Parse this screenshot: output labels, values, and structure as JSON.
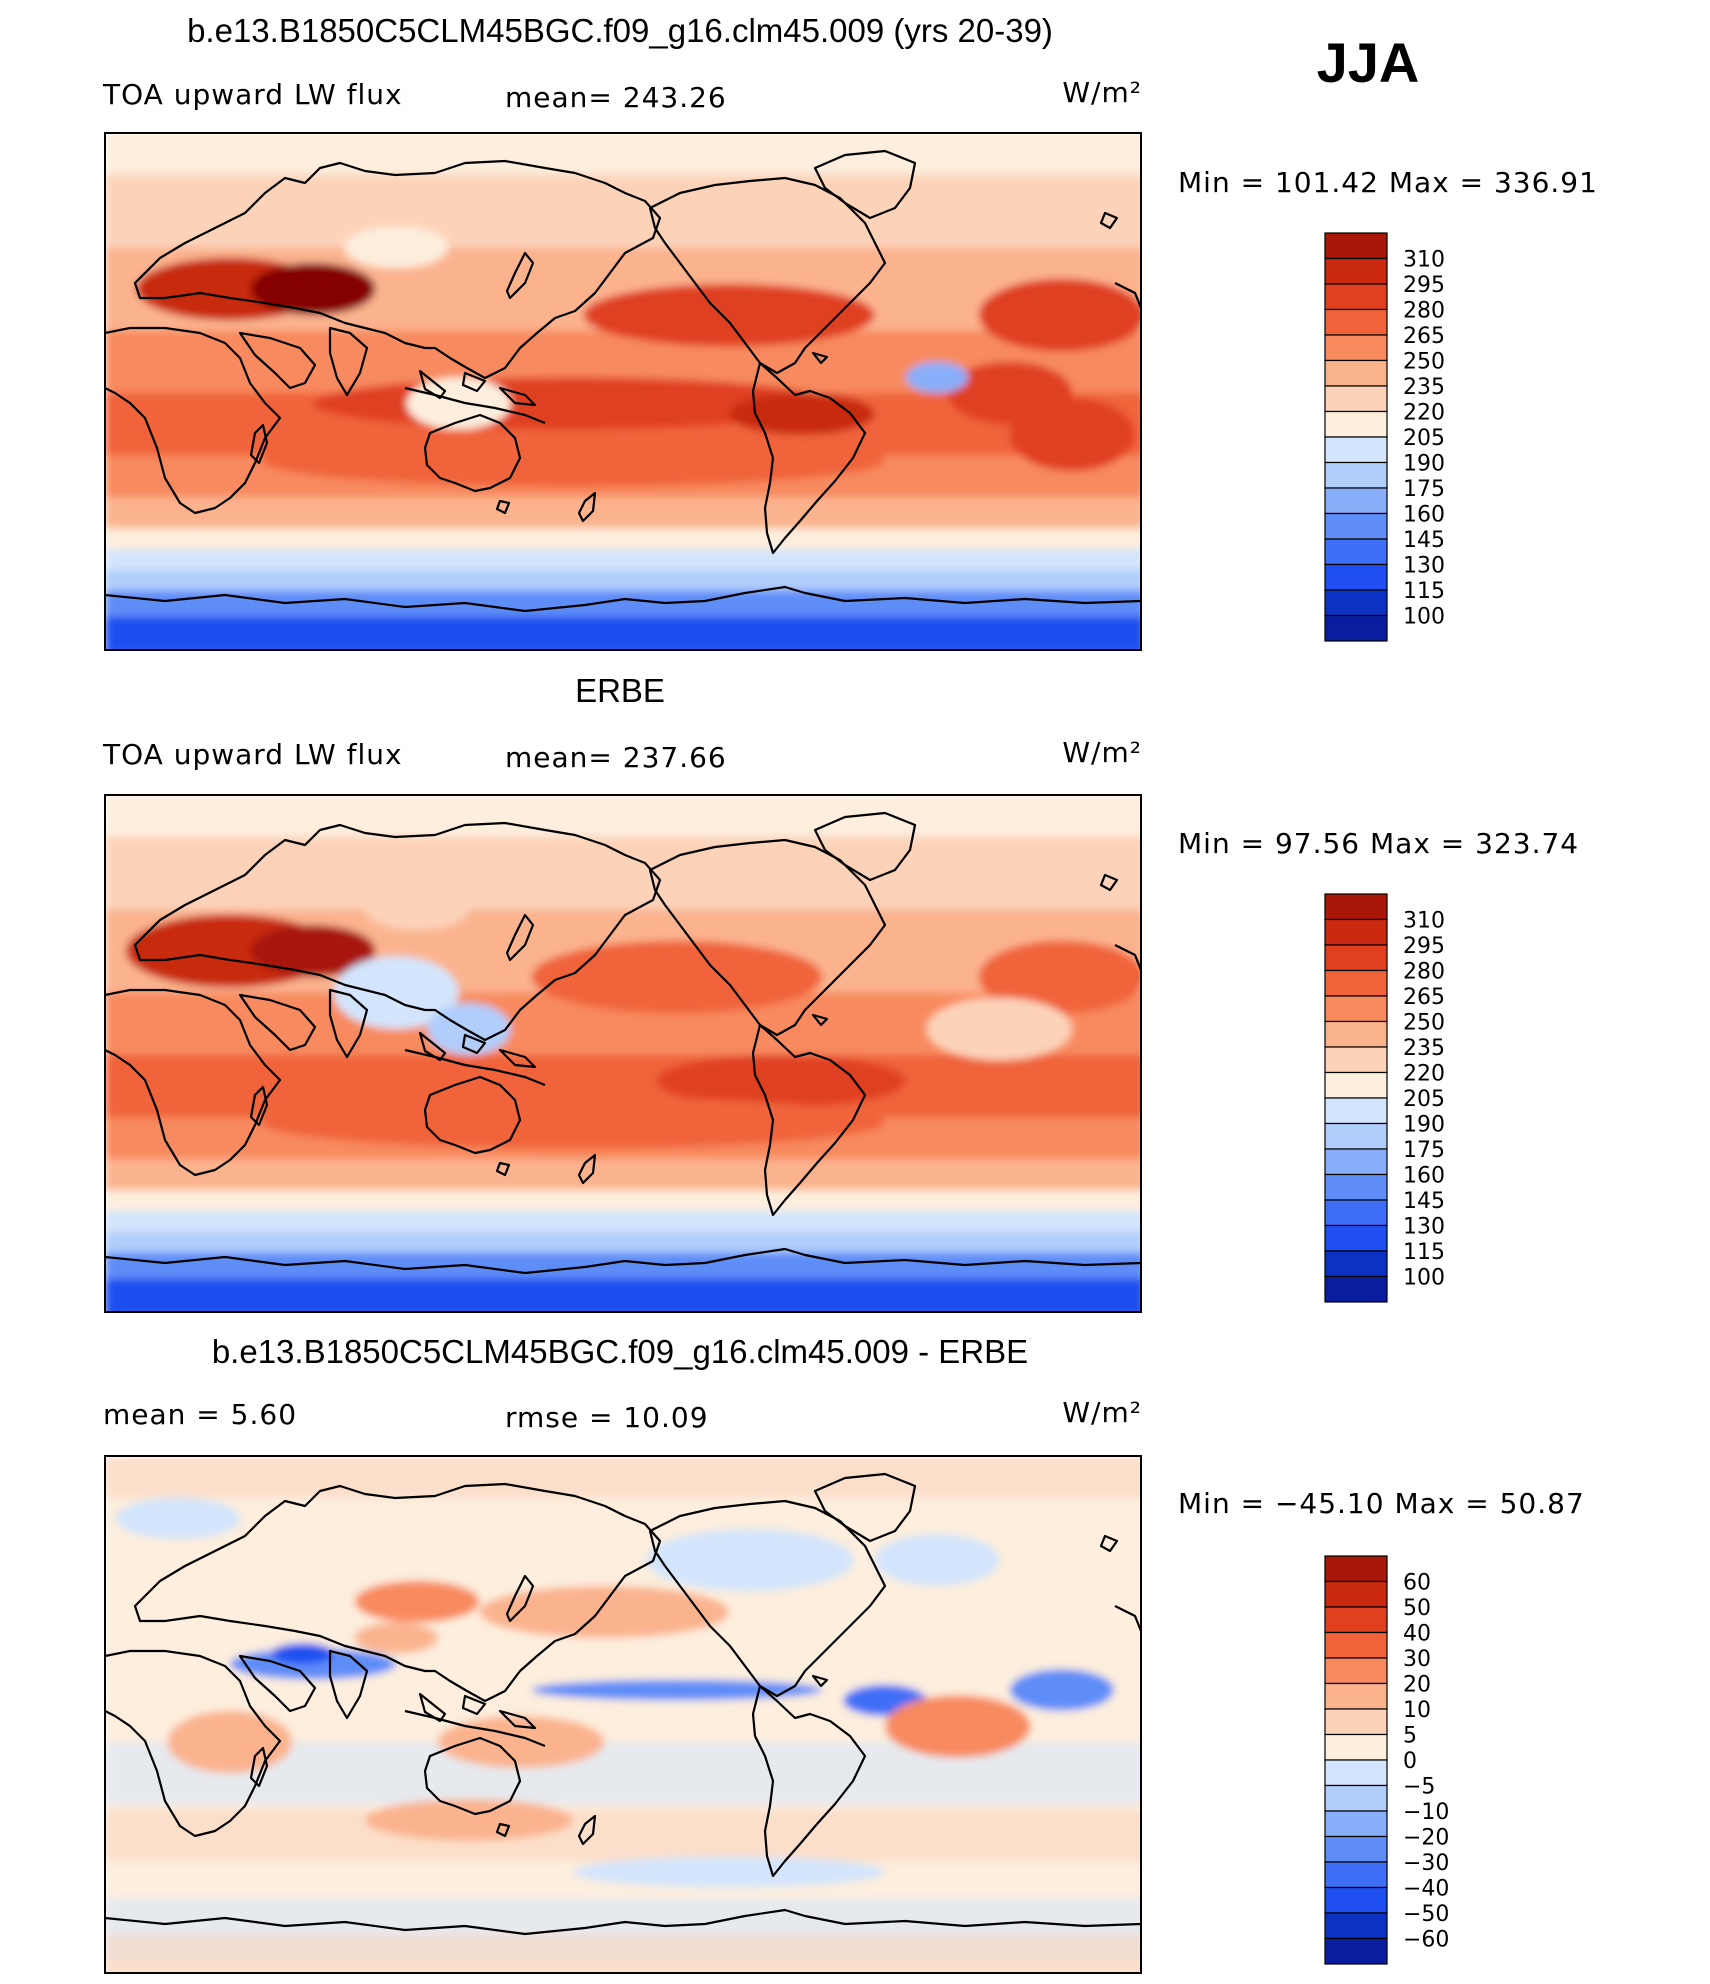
{
  "season": "JJA",
  "colors": {
    "cmap": [
      "#00006e",
      "#0a1d9e",
      "#0c32c4",
      "#1f4ff0",
      "#3f6ef7",
      "#5f8df8",
      "#89aef9",
      "#b1cdfb",
      "#d3e5fc",
      "#fdeedd",
      "#fcd3b9",
      "#fbb38e",
      "#f88a5e",
      "#f0633a",
      "#e04020",
      "#c8290f",
      "#a81708",
      "#850500"
    ]
  },
  "panels": [
    {
      "title": "b.e13.B1850C5CLM45BGC.f09_g16.clm45.009 (yrs 20-39)",
      "left_label": "TOA upward LW flux",
      "mid_label": "mean=  243.26",
      "units": "W/m²",
      "minmax": "Min  =  101.42  Max  =  336.91",
      "colorbar_labels": [
        "310",
        "295",
        "280",
        "265",
        "250",
        "235",
        "220",
        "205",
        "190",
        "175",
        "160",
        "145",
        "130",
        "115",
        "100"
      ],
      "map": {
        "type": "model"
      }
    },
    {
      "title": "ERBE",
      "left_label": "TOA upward LW flux",
      "mid_label": "mean=  237.66",
      "units": "W/m²",
      "minmax": "Min  =    97.56  Max  =  323.74",
      "colorbar_labels": [
        "310",
        "295",
        "280",
        "265",
        "250",
        "235",
        "220",
        "205",
        "190",
        "175",
        "160",
        "145",
        "130",
        "115",
        "100"
      ],
      "map": {
        "type": "obs"
      }
    },
    {
      "title": "b.e13.B1850C5CLM45BGC.f09_g16.clm45.009 - ERBE",
      "left_label": "mean  =      5.60",
      "mid_label": "rmse  =     10.09",
      "units": "W/m²",
      "minmax": "Min  =  −45.10  Max  =     50.87",
      "colorbar_labels": [
        "60",
        "50",
        "40",
        "30",
        "20",
        "10",
        "5",
        "0",
        "−5",
        "−10",
        "−20",
        "−30",
        "−40",
        "−50",
        "−60"
      ],
      "map": {
        "type": "diff"
      }
    }
  ]
}
